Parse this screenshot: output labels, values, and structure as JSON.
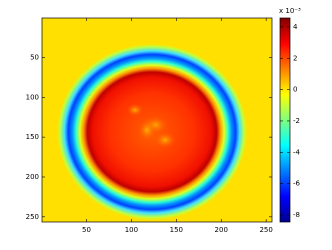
{
  "chart_data": {
    "type": "heatmap",
    "xlim": [
      0.5,
      256.5
    ],
    "xticks": [
      50,
      100,
      150,
      200,
      250
    ],
    "ylim": [
      0.5,
      256.5
    ],
    "yticks": [
      50,
      100,
      150,
      200,
      250
    ],
    "colorbar": {
      "clim": [
        -8.45,
        4.57
      ],
      "ticks": [
        4,
        2,
        0,
        -2,
        -4,
        -6,
        -8
      ],
      "exponent_label": "x 10⁻³",
      "colormap": "jet"
    }
  }
}
